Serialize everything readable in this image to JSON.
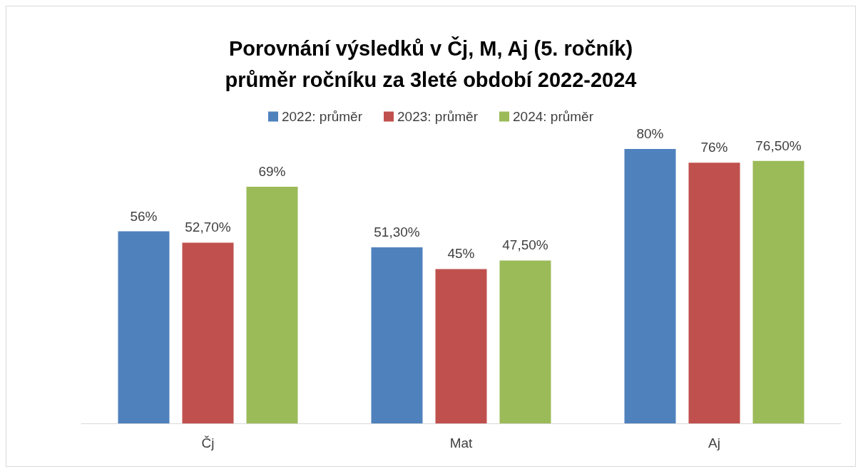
{
  "chart_data": {
    "type": "bar",
    "title": "Porovnání výsledků v Čj, M, Aj (5. ročník)\nprůměr ročníku za 3leté období 2022-2024",
    "categories": [
      "Čj",
      "Mat",
      "Aj"
    ],
    "series": [
      {
        "name": "2022: průměr",
        "color": "#4f81bd",
        "values": [
          56,
          51.3,
          80
        ],
        "value_labels": [
          "56%",
          "51,30%",
          "80%"
        ]
      },
      {
        "name": "2023: průměr",
        "color": "#c0504d",
        "values": [
          52.7,
          45,
          76
        ],
        "value_labels": [
          "52,70%",
          "45%",
          "76%"
        ]
      },
      {
        "name": "2024: průměr",
        "color": "#9bbb59",
        "values": [
          69,
          47.5,
          76.5
        ],
        "value_labels": [
          "69%",
          "47,50%",
          "76,50%"
        ]
      }
    ],
    "legend": "top"
  }
}
